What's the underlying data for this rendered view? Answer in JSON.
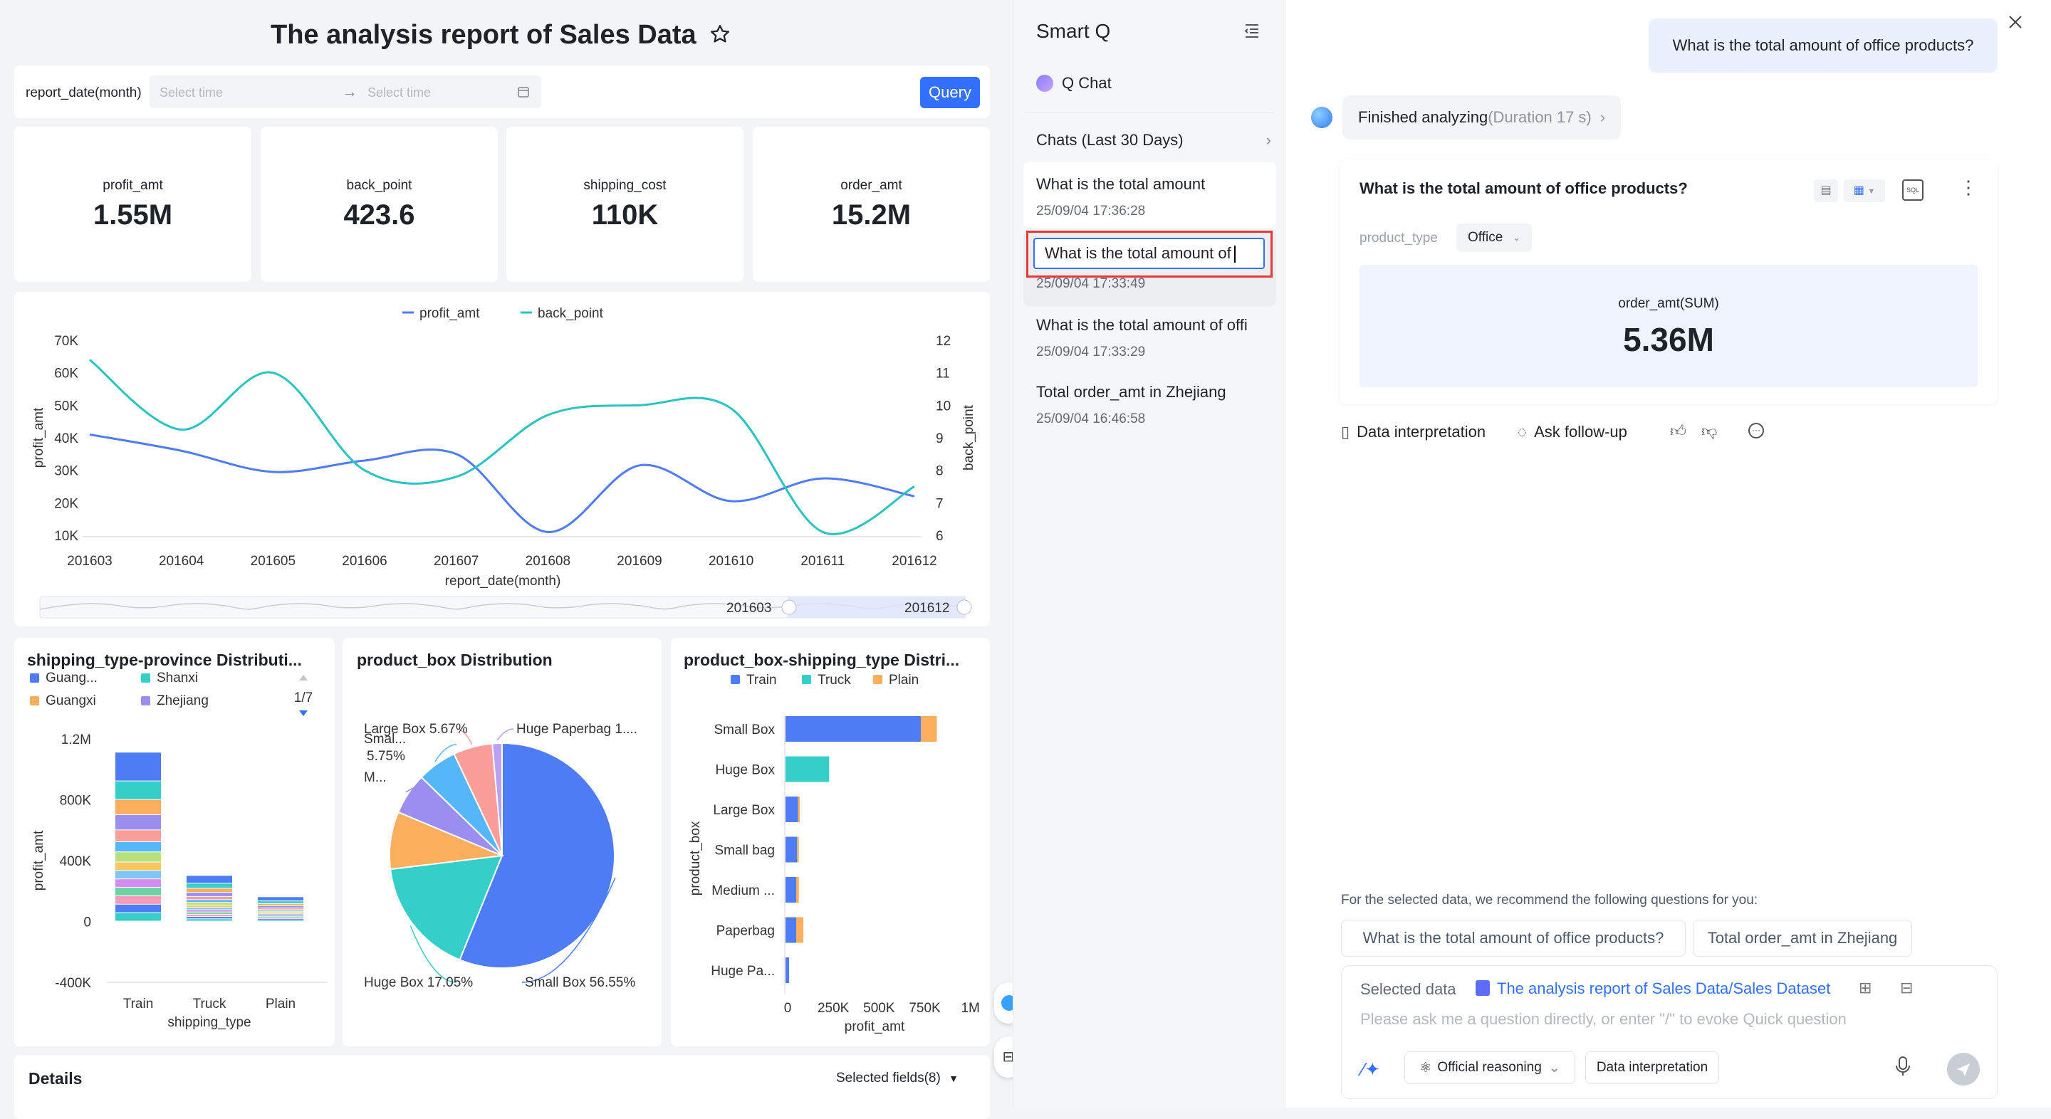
{
  "dashboard": {
    "title": "The analysis report of Sales Data",
    "filter": {
      "label": "report_date(month)",
      "start_placeholder": "Select time",
      "end_placeholder": "Select time",
      "query_label": "Query"
    },
    "kpis": [
      {
        "label": "profit_amt",
        "value": "1.55M"
      },
      {
        "label": "back_point",
        "value": "423.6"
      },
      {
        "label": "shipping_cost",
        "value": "110K"
      },
      {
        "label": "order_amt",
        "value": "15.2M"
      }
    ],
    "details_title": "Details",
    "selected_fields": "Selected fields(8)"
  },
  "line_chart_labels": {
    "y_left_ticks": [
      "70K",
      "60K",
      "50K",
      "40K",
      "30K",
      "20K",
      "10K"
    ],
    "y_right_ticks": [
      "12",
      "11",
      "10",
      "9",
      "8",
      "7",
      "6"
    ],
    "slider_start": "201603",
    "slider_end": "201612"
  },
  "chart_data": [
    {
      "type": "line",
      "title": "",
      "xlabel": "report_date(month)",
      "ylabel": "profit_amt",
      "y2label": "back_point",
      "x": [
        "201603",
        "201604",
        "201605",
        "201606",
        "201607",
        "201608",
        "201609",
        "201610",
        "201611",
        "201612"
      ],
      "ylim": [
        10000,
        70000
      ],
      "y2lim": [
        6,
        12
      ],
      "legend": "top-center",
      "series": [
        {
          "name": "profit_amt",
          "axis": "left",
          "color": "#4e7cf5",
          "values": [
            41000,
            36000,
            29500,
            33000,
            35000,
            11000,
            31500,
            20500,
            27500,
            22000
          ]
        },
        {
          "name": "back_point",
          "axis": "right",
          "color": "#2ac3c0",
          "values": [
            11.4,
            9.25,
            11.0,
            8.0,
            7.8,
            9.7,
            10.0,
            9.9,
            6.1,
            7.5
          ]
        }
      ]
    },
    {
      "type": "bar",
      "stacked": true,
      "title": "shipping_type-province Distributi...",
      "xlabel": "shipping_type",
      "ylabel": "profit_amt",
      "categories": [
        "Train",
        "Truck",
        "Plain"
      ],
      "ylim": [
        -400000,
        1200000
      ],
      "y_ticks": [
        "1.2M",
        "800K",
        "400K",
        "0",
        "-400K"
      ],
      "legend": [
        "Guang...",
        "Shanxi",
        "Guangxi",
        "Zhejiang"
      ],
      "legend_page": "1/7",
      "totals": [
        1110000,
        300000,
        160000
      ]
    },
    {
      "type": "pie",
      "title": "product_box Distribution",
      "slices": [
        {
          "label": "Small Box 56.55%",
          "value": 56.55,
          "color": "#4e7cf5"
        },
        {
          "label": "Huge Box 17.05%",
          "value": 17.05,
          "color": "#35cfc9"
        },
        {
          "label": "",
          "value": 8.3,
          "color": "#fbaf5d"
        },
        {
          "label": "M...",
          "value": 6.0,
          "color": "#9a8ef0"
        },
        {
          "label": "Smal... 5.75%",
          "value": 5.75,
          "color": "#55b7f7"
        },
        {
          "label": "Large Box 5.67%",
          "value": 5.67,
          "color": "#fb9e9a"
        },
        {
          "label": "Huge Paperbag 1....",
          "value": 1.4,
          "color": "#b9a0f2"
        }
      ]
    },
    {
      "type": "bar",
      "orientation": "horizontal",
      "stacked": true,
      "title": "product_box-shipping_type Distri...",
      "xlabel": "profit_amt",
      "ylabel": "product_box",
      "categories": [
        "Small Box",
        "Huge Box",
        "Large Box",
        "Small bag",
        "Medium ...",
        "Paperbag",
        "Huge Pa..."
      ],
      "x_ticks": [
        "0",
        "250K",
        "500K",
        "750K",
        "1M"
      ],
      "xlim": [
        0,
        1000000
      ],
      "series": [
        {
          "name": "Train",
          "color": "#4e7cf5",
          "values": [
            760000,
            0,
            70000,
            65000,
            60000,
            60000,
            20000
          ]
        },
        {
          "name": "Truck",
          "color": "#35cfc9",
          "values": [
            0,
            245000,
            0,
            0,
            0,
            0,
            0
          ]
        },
        {
          "name": "Plain",
          "color": "#fbaf5d",
          "values": [
            90000,
            0,
            10000,
            10000,
            15000,
            40000,
            0
          ]
        }
      ]
    }
  ],
  "sidebar": {
    "title": "Smart Q",
    "q_chat": "Q Chat",
    "chats_header": "Chats (Last 30 Days)",
    "items": [
      {
        "q": "What is the total amount",
        "t": "25/09/04 17:36:28"
      },
      {
        "q": "What is the total amount of",
        "t": "25/09/04 17:33:49"
      },
      {
        "q": "What is the total amount of offi",
        "t": "25/09/04 17:33:29"
      },
      {
        "q": "Total order_amt in Zhejiang",
        "t": "25/09/04 16:46:58"
      }
    ]
  },
  "chat": {
    "user_question": "What is the total amount of office products?",
    "status": "Finished analyzing",
    "duration": "(Duration 17 s)",
    "result_title": "What is the total amount of office products?",
    "filter_label": "product_type",
    "filter_value": "Office",
    "metric_label": "order_amt(SUM)",
    "metric_value": "5.36M",
    "actions": {
      "interpret": "Data interpretation",
      "follow": "Ask follow-up"
    },
    "recommend_text": "For the selected data, we recommend the following questions for you:",
    "recommendations": [
      "What is the total amount of office products?",
      "Total order_amt in Zhejiang"
    ],
    "input": {
      "selected_label": "Selected data",
      "selected_value": "The analysis report of Sales Data/Sales Dataset",
      "placeholder": "Please ask me a question directly, or enter \"/\" to evoke Quick question",
      "mode": "Official reasoning",
      "interpret_btn": "Data interpretation"
    }
  }
}
